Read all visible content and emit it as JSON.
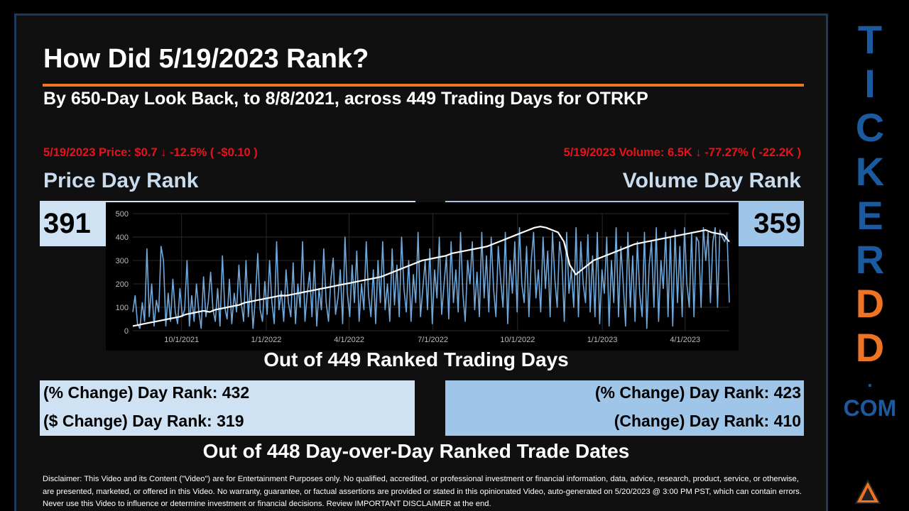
{
  "title": "How Did 5/19/2023 Rank?",
  "subtitle": "By 650-Day Look Back, to 8/8/2021, across 449 Trading Days for OTRKP",
  "price_change": "5/19/2023 Price: $0.7 ↓ -12.5% ( -$0.10 )",
  "volume_change": "5/19/2023 Volume: 6.5K ↓ -77.27% ( -22.2K )",
  "price_rank_label": "Price Day Rank",
  "volume_rank_label": "Volume Day Rank",
  "price_rank_value": "391",
  "volume_rank_value": "359",
  "out_of_days": "Out of 449 Ranked Trading Days",
  "left_stats": {
    "pct": "(% Change) Day Rank: 432",
    "dollar": "($ Change) Day Rank: 319"
  },
  "right_stats": {
    "pct": "(% Change) Day Rank: 423",
    "change": "(Change) Day Rank: 410"
  },
  "out_of_dates": "Out of 448 Day-over-Day Ranked Trade Dates",
  "disclaimer": "Disclaimer: This Video and its Content (\"Video\") are for Entertainment Purposes only. No qualified, accredited, or professional investment or financial information, data, advice, research, product, service, or otherwise, are presented, marketed, or offered in this Video. No warranty, guarantee, or factual assertions are provided or stated in this opinionated Video, auto-generated on 5/20/2023 @ 3:00 PM PST, which can contain errors. Never use this Video to influence or determine investment or financial decisions. Review IMPORTANT DISCLAIMER at the end.",
  "side_brand": {
    "letters": [
      "T",
      "I",
      "C",
      "K",
      "E",
      "R",
      "D",
      "D",
      "."
    ],
    "suffix": "COM"
  },
  "colors": {
    "accent": "#ee7322",
    "blue_text": "#1c5aa0",
    "alert": "#e8121b",
    "box_light": "#cfe2f3",
    "box_mid": "#9fc5e8"
  },
  "chart_data": {
    "type": "line",
    "x_ticks": [
      "10/1/2021",
      "1/1/2022",
      "4/1/2022",
      "7/1/2022",
      "10/1/2022",
      "1/1/2023",
      "4/1/2023"
    ],
    "y_ticks": [
      0,
      100,
      200,
      300,
      400,
      500
    ],
    "ylim": [
      0,
      500
    ],
    "xlim": [
      "8/9/2021",
      "5/19/2023"
    ],
    "grid": true,
    "series": [
      {
        "color": "#6fa8dc",
        "values": [
          80,
          150,
          30,
          10,
          120,
          40,
          350,
          60,
          200,
          20,
          130,
          80,
          360,
          300,
          20,
          160,
          40,
          220,
          80,
          30,
          180,
          60,
          90,
          300,
          20,
          150,
          40,
          200,
          80,
          10,
          230,
          60,
          120,
          250,
          90,
          40,
          180,
          20,
          320,
          100,
          50,
          220,
          30,
          160,
          80,
          280,
          120,
          40,
          300,
          60,
          200,
          10,
          140,
          330,
          90,
          40,
          210,
          70,
          300,
          120,
          30,
          380,
          90,
          170,
          40,
          260,
          120,
          60,
          290,
          30,
          200,
          100,
          380,
          40,
          160,
          250,
          60,
          300,
          20,
          180,
          90,
          350,
          120,
          40,
          220,
          310,
          70,
          140,
          260,
          30,
          400,
          160,
          60,
          280,
          120,
          340,
          40,
          200,
          90,
          380,
          150,
          60,
          260,
          30,
          300,
          120,
          380,
          90,
          200,
          40,
          350,
          110,
          280,
          60,
          400,
          180,
          80,
          300,
          40,
          240,
          120,
          420,
          60,
          180,
          300,
          90,
          350,
          30,
          260,
          140,
          400,
          70,
          200,
          320,
          50,
          380,
          120,
          260,
          80,
          420,
          160,
          40,
          300,
          200,
          380,
          90,
          250,
          60,
          420,
          140,
          320,
          80,
          400,
          180,
          60,
          360,
          220,
          100,
          420,
          30,
          300,
          160,
          380,
          80,
          440,
          200,
          120,
          360,
          60,
          300,
          420,
          140,
          260,
          80,
          400,
          180,
          340,
          60,
          420,
          220,
          100,
          380,
          300,
          40,
          420,
          160,
          260,
          100,
          440,
          60,
          380,
          200,
          120,
          410,
          80,
          320,
          60,
          420,
          30,
          260,
          160,
          400,
          20,
          300,
          120,
          440,
          60,
          360,
          200,
          20,
          420,
          100,
          320,
          40,
          380,
          160,
          60,
          420,
          10,
          280,
          380,
          100,
          440,
          40,
          300,
          180,
          420,
          60,
          400,
          20,
          430,
          120,
          360,
          60,
          440,
          200,
          100,
          420,
          60,
          400,
          380,
          100,
          440,
          300,
          420,
          120,
          380,
          440,
          100,
          430,
          400,
          380,
          420,
          120
        ]
      },
      {
        "color": "#ffffff",
        "values": [
          20,
          25,
          30,
          35,
          40,
          45,
          50,
          55,
          60,
          70,
          75,
          80,
          85,
          80,
          90,
          95,
          100,
          105,
          110,
          120,
          125,
          130,
          135,
          140,
          145,
          150,
          150,
          155,
          160,
          165,
          170,
          175,
          180,
          185,
          190,
          195,
          200,
          205,
          210,
          215,
          220,
          225,
          230,
          240,
          250,
          260,
          270,
          280,
          290,
          300,
          305,
          310,
          315,
          320,
          330,
          335,
          340,
          345,
          350,
          355,
          360,
          370,
          380,
          390,
          400,
          410,
          420,
          430,
          440,
          445,
          440,
          430,
          420,
          380,
          280,
          240,
          260,
          280,
          300,
          310,
          320,
          330,
          340,
          350,
          360,
          370,
          375,
          380,
          385,
          390,
          395,
          400,
          405,
          410,
          415,
          420,
          425,
          430,
          420,
          415,
          410,
          380
        ]
      }
    ]
  }
}
